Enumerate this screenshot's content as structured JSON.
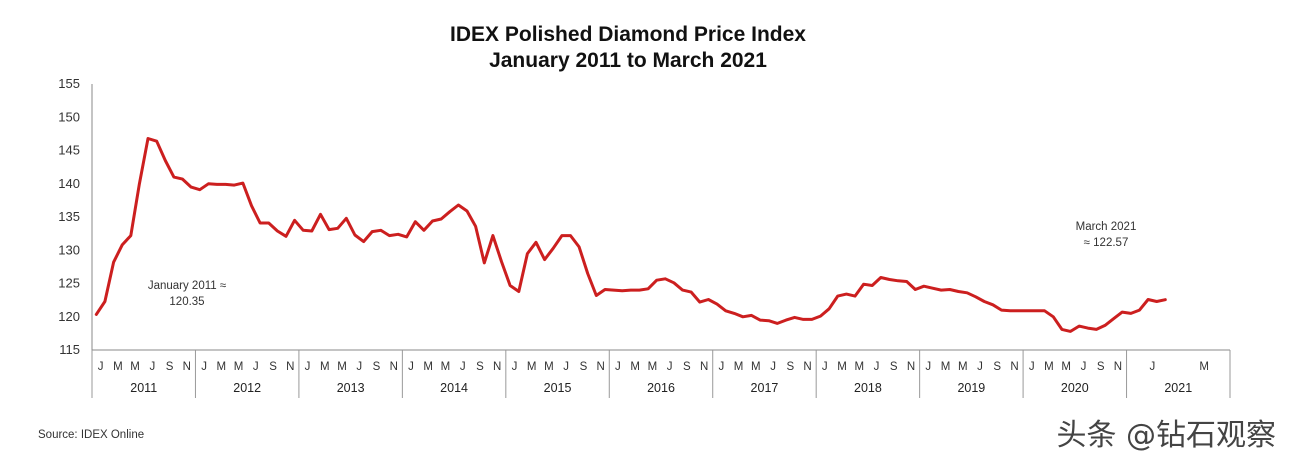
{
  "chart_data": {
    "type": "line",
    "title": "IDEX Polished Diamond Price Index",
    "subtitle": "January 2011 to March 2021",
    "xlabel": "",
    "ylabel": "",
    "ylim": [
      115,
      155
    ],
    "yticks": [
      115,
      120,
      125,
      130,
      135,
      140,
      145,
      150,
      155
    ],
    "x_start": "2011-01",
    "x_end": "2021-03",
    "month_ticks": [
      "J",
      "M",
      "M",
      "J",
      "S",
      "N"
    ],
    "year_labels": [
      "2011",
      "2012",
      "2013",
      "2014",
      "2015",
      "2016",
      "2017",
      "2018",
      "2019",
      "2020",
      "2021"
    ],
    "final_year_month_ticks": [
      "J",
      "M"
    ],
    "series": [
      {
        "color": "#cc1f1f",
        "values": [
          120.35,
          122.3,
          128.2,
          130.8,
          132.2,
          140,
          146.8,
          146.4,
          143.5,
          141,
          140.7,
          139.5,
          139.1,
          140,
          139.9,
          139.9,
          139.8,
          140.1,
          136.7,
          134.1,
          134.1,
          132.9,
          132.1,
          134.5,
          133,
          132.9,
          135.4,
          133.1,
          133.3,
          134.8,
          132.3,
          131.3,
          132.8,
          133,
          132.2,
          132.4,
          132,
          134.3,
          133,
          134.4,
          134.7,
          135.8,
          136.8,
          135.9,
          133.6,
          128.1,
          132.2,
          128.3,
          124.7,
          123.8,
          129.5,
          131.2,
          128.6,
          130.3,
          132.2,
          132.2,
          130.5,
          126.5,
          123.2,
          124.1,
          124,
          123.9,
          124,
          124,
          124.2,
          125.5,
          125.7,
          125.1,
          124,
          123.7,
          122.2,
          122.6,
          121.9,
          120.9,
          120.5,
          120,
          120.2,
          119.5,
          119.4,
          119,
          119.5,
          119.9,
          119.6,
          119.6,
          120.1,
          121.2,
          123.1,
          123.4,
          123.1,
          124.9,
          124.7,
          125.9,
          125.6,
          125.4,
          125.3,
          124.1,
          124.6,
          124.3,
          124,
          124.1,
          123.8,
          123.6,
          123,
          122.3,
          121.8,
          121,
          120.9,
          120.9,
          120.9,
          120.9,
          120.9,
          120,
          118.1,
          117.8,
          118.6,
          118.3,
          118.1,
          118.7,
          119.7,
          120.7,
          120.5,
          121,
          122.6,
          122.3,
          122.57
        ]
      }
    ],
    "annotations": [
      {
        "lines": [
          "January 2011 ≈",
          "120.35"
        ],
        "month_index": 0
      },
      {
        "lines": [
          "March 2021",
          "≈ 122.57"
        ],
        "month_index": 122
      }
    ],
    "grid": false,
    "legend": "none"
  },
  "source": "Source:  IDEX Online",
  "watermark": "头条 @钻石观察"
}
